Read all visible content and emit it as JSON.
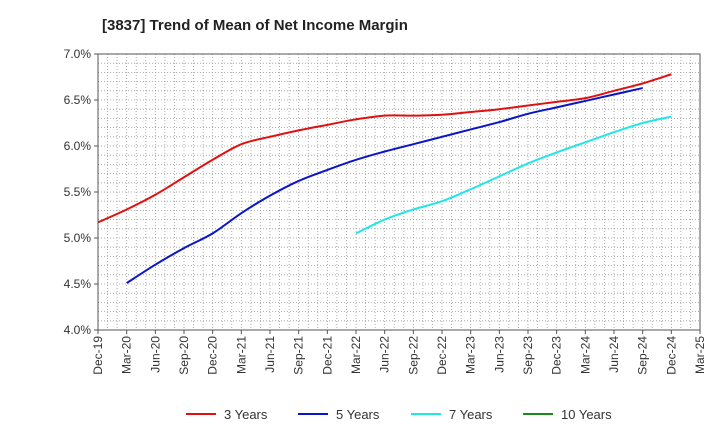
{
  "chart_data": {
    "type": "line",
    "title": "[3837]  Trend of Mean of Net Income Margin",
    "xlabel": "",
    "ylabel": "",
    "x": [
      "Dec-19",
      "Mar-20",
      "Jun-20",
      "Sep-20",
      "Dec-20",
      "Mar-21",
      "Jun-21",
      "Sep-21",
      "Dec-21",
      "Mar-22",
      "Jun-22",
      "Sep-22",
      "Dec-22",
      "Mar-23",
      "Jun-23",
      "Sep-23",
      "Dec-23",
      "Mar-24",
      "Jun-24",
      "Sep-24",
      "Dec-24",
      "Mar-25"
    ],
    "y_ticks": [
      "4.0%",
      "4.5%",
      "5.0%",
      "5.5%",
      "6.0%",
      "6.5%",
      "7.0%"
    ],
    "ylim": [
      4.0,
      7.0
    ],
    "grid": true,
    "legend_position": "bottom",
    "series": [
      {
        "name": "3 Years",
        "color": "#e01010",
        "values": [
          5.17,
          5.31,
          5.47,
          5.66,
          5.85,
          6.02,
          6.1,
          6.17,
          6.23,
          6.29,
          6.33,
          6.33,
          6.34,
          6.37,
          6.4,
          6.44,
          6.48,
          6.52,
          6.6,
          6.68,
          6.78,
          null
        ]
      },
      {
        "name": "5 Years",
        "color": "#0a14c8",
        "values": [
          null,
          4.51,
          4.71,
          4.89,
          5.05,
          5.27,
          5.46,
          5.62,
          5.74,
          5.85,
          5.94,
          6.02,
          6.1,
          6.18,
          6.26,
          6.35,
          6.42,
          6.49,
          6.56,
          6.63,
          null,
          null
        ]
      },
      {
        "name": "7 Years",
        "color": "#22e6e6",
        "values": [
          null,
          null,
          null,
          null,
          null,
          null,
          null,
          null,
          null,
          5.05,
          5.2,
          5.31,
          5.4,
          5.53,
          5.67,
          5.81,
          5.93,
          6.04,
          6.15,
          6.25,
          6.32,
          null
        ]
      },
      {
        "name": "10 Years",
        "color": "#1a8a1a",
        "values": [
          null,
          null,
          null,
          null,
          null,
          null,
          null,
          null,
          null,
          null,
          null,
          null,
          null,
          null,
          null,
          null,
          null,
          null,
          null,
          null,
          null,
          null
        ]
      }
    ]
  }
}
